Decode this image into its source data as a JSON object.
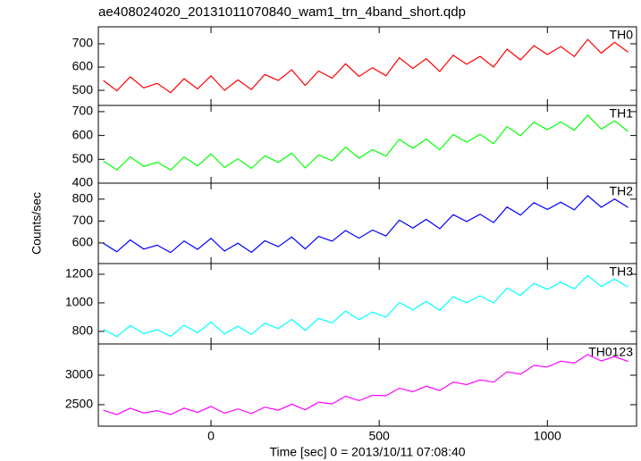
{
  "chart_data": [
    {
      "type": "line",
      "title": "ae408024020_20131011070840_wam1_trn_4band_short.qdp",
      "x": [
        -320,
        -280,
        -240,
        -200,
        -160,
        -120,
        -80,
        -40,
        0,
        40,
        80,
        120,
        160,
        200,
        240,
        280,
        320,
        360,
        400,
        440,
        480,
        520,
        560,
        600,
        640,
        680,
        720,
        760,
        800,
        840,
        880,
        920,
        960,
        1000,
        1040,
        1080,
        1120,
        1160,
        1200,
        1240
      ],
      "series": [
        {
          "name": "TH0",
          "color": "#ff0000",
          "values": [
            542,
            498,
            558,
            510,
            530,
            490,
            550,
            506,
            562,
            500,
            545,
            503,
            568,
            542,
            588,
            521,
            583,
            552,
            614,
            560,
            597,
            563,
            640,
            594,
            636,
            581,
            651,
            612,
            646,
            600,
            677,
            631,
            692,
            654,
            688,
            645,
            719,
            660,
            706,
            664
          ]
        }
      ],
      "xlim": [
        -335,
        1265
      ],
      "ylim": [
        435,
        773
      ],
      "yticks": [
        500,
        600,
        700
      ]
    },
    {
      "type": "line",
      "x": [
        -320,
        -280,
        -240,
        -200,
        -160,
        -120,
        -80,
        -40,
        0,
        40,
        80,
        120,
        160,
        200,
        240,
        280,
        320,
        360,
        400,
        440,
        480,
        520,
        560,
        600,
        640,
        680,
        720,
        760,
        800,
        840,
        880,
        920,
        960,
        1000,
        1040,
        1080,
        1120,
        1160,
        1200,
        1240
      ],
      "series": [
        {
          "name": "TH1",
          "color": "#00ff00",
          "values": [
            493,
            456,
            510,
            470,
            488,
            455,
            510,
            472,
            523,
            466,
            502,
            462,
            515,
            487,
            526,
            464,
            518,
            494,
            551,
            505,
            541,
            513,
            584,
            546,
            585,
            540,
            604,
            572,
            605,
            566,
            637,
            599,
            656,
            624,
            657,
            622,
            685,
            627,
            661,
            617
          ]
        }
      ],
      "xlim": [
        -335,
        1265
      ],
      "ylim": [
        400,
        726
      ],
      "yticks": [
        400,
        500,
        600,
        700
      ]
    },
    {
      "type": "line",
      "y_label": "Counts/sec",
      "x": [
        -320,
        -280,
        -240,
        -200,
        -160,
        -120,
        -80,
        -40,
        0,
        40,
        80,
        120,
        160,
        200,
        240,
        280,
        320,
        360,
        400,
        440,
        480,
        520,
        560,
        600,
        640,
        680,
        720,
        760,
        800,
        840,
        880,
        920,
        960,
        1000,
        1040,
        1080,
        1120,
        1160,
        1200,
        1240
      ],
      "series": [
        {
          "name": "TH2",
          "color": "#0000ff",
          "values": [
            598,
            560,
            614,
            572,
            590,
            556,
            609,
            571,
            621,
            563,
            599,
            557,
            610,
            583,
            627,
            573,
            630,
            608,
            657,
            622,
            659,
            632,
            704,
            668,
            708,
            665,
            729,
            698,
            731,
            693,
            764,
            727,
            784,
            753,
            786,
            751,
            816,
            763,
            801,
            762
          ]
        }
      ],
      "xlim": [
        -335,
        1265
      ],
      "ylim": [
        506,
        873
      ],
      "yticks": [
        600,
        700,
        800
      ]
    },
    {
      "type": "line",
      "x": [
        -320,
        -280,
        -240,
        -200,
        -160,
        -120,
        -80,
        -40,
        0,
        40,
        80,
        120,
        160,
        200,
        240,
        280,
        320,
        360,
        400,
        440,
        480,
        520,
        560,
        600,
        640,
        680,
        720,
        760,
        800,
        840,
        880,
        920,
        960,
        1000,
        1040,
        1080,
        1120,
        1160,
        1200,
        1240
      ],
      "series": [
        {
          "name": "TH3",
          "color": "#00ffff",
          "values": [
            815,
            763,
            841,
            784,
            812,
            765,
            843,
            791,
            865,
            783,
            836,
            779,
            857,
            820,
            884,
            807,
            891,
            859,
            943,
            882,
            935,
            899,
            1002,
            951,
            1010,
            948,
            1042,
            1001,
            1050,
            999,
            1103,
            1052,
            1136,
            1095,
            1144,
            1098,
            1191,
            1114,
            1167,
            1110
          ]
        }
      ],
      "xlim": [
        -335,
        1265
      ],
      "ylim": [
        712,
        1275
      ],
      "yticks": [
        800,
        1000,
        1200
      ]
    },
    {
      "type": "line",
      "x_label": "Time [sec] 0 = 2013/10/11 07:08:40",
      "x": [
        -320,
        -280,
        -240,
        -200,
        -160,
        -120,
        -80,
        -40,
        0,
        40,
        80,
        120,
        160,
        200,
        240,
        280,
        320,
        360,
        400,
        440,
        480,
        520,
        560,
        600,
        640,
        680,
        720,
        760,
        800,
        840,
        880,
        920,
        960,
        1000,
        1040,
        1080,
        1120,
        1160,
        1200,
        1240
      ],
      "series": [
        {
          "name": "TH0123",
          "color": "#ff00ff",
          "values": [
            2405,
            2332,
            2441,
            2361,
            2399,
            2333,
            2442,
            2369,
            2471,
            2356,
            2429,
            2349,
            2458,
            2406,
            2508,
            2414,
            2544,
            2513,
            2643,
            2570,
            2658,
            2652,
            2778,
            2719,
            2814,
            2741,
            2885,
            2840,
            2921,
            2881,
            3057,
            3017,
            3166,
            3139,
            3239,
            3206,
            3351,
            3242,
            3315,
            3234
          ]
        }
      ],
      "xlim": [
        -335,
        1265
      ],
      "ylim": [
        2136,
        3530
      ],
      "yticks": [
        2500,
        3000
      ],
      "xticks": [
        0,
        500,
        1000
      ]
    }
  ]
}
